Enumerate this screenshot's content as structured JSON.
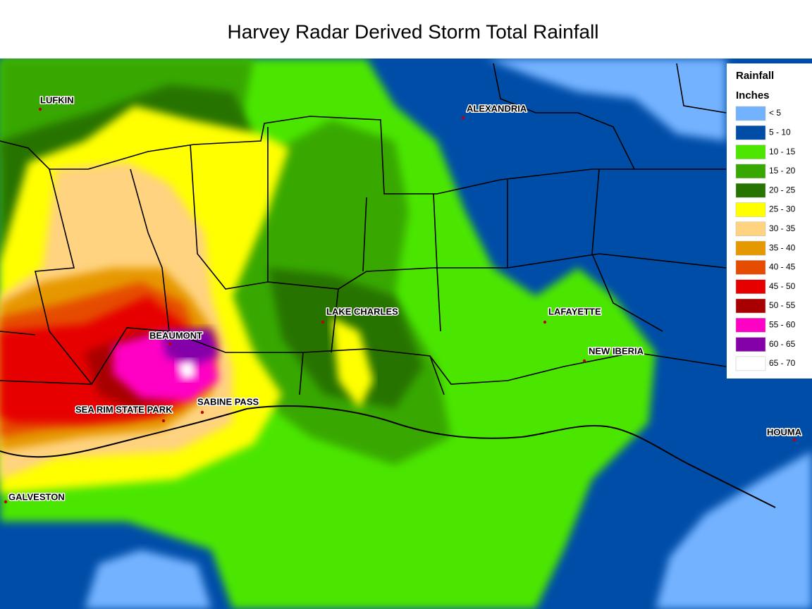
{
  "title": "Harvey Radar Derived Storm Total Rainfall",
  "legend": {
    "title": "Rainfall",
    "subtitle": "Inches",
    "items": [
      {
        "label": "< 5",
        "color": "#73b2ff"
      },
      {
        "label": "5 - 10",
        "color": "#004da8"
      },
      {
        "label": "10 - 15",
        "color": "#4ce600"
      },
      {
        "label": "15 - 20",
        "color": "#38a800"
      },
      {
        "label": "20 - 25",
        "color": "#267300"
      },
      {
        "label": "25 - 30",
        "color": "#ffff00"
      },
      {
        "label": "30 - 35",
        "color": "#ffd37f"
      },
      {
        "label": "35 - 40",
        "color": "#e69800"
      },
      {
        "label": "40 - 45",
        "color": "#e64c00"
      },
      {
        "label": "45 - 50",
        "color": "#e60000"
      },
      {
        "label": "50 - 55",
        "color": "#a80000"
      },
      {
        "label": "55 - 60",
        "color": "#ff00c5"
      },
      {
        "label": "60 - 65",
        "color": "#8400a8"
      },
      {
        "label": "65 - 70",
        "color": "#ffffff"
      }
    ]
  },
  "places": [
    {
      "label": "LUFKIN"
    },
    {
      "label": "ALEXANDRIA"
    },
    {
      "label": "BEAUMONT"
    },
    {
      "label": "LAKE CHARLES"
    },
    {
      "label": "LAFAYETTE"
    },
    {
      "label": "NEW IBERIA"
    },
    {
      "label": "SABINE PASS"
    },
    {
      "label": "SEA RIM STATE PARK"
    },
    {
      "label": "GALVESTON"
    },
    {
      "label": "HOUMA"
    }
  ]
}
